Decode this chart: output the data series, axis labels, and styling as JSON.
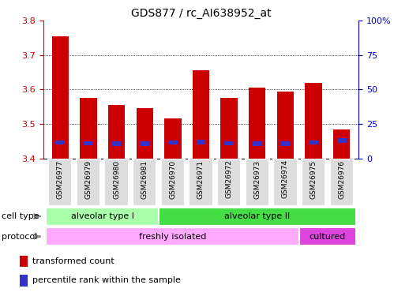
{
  "title": "GDS877 / rc_AI638952_at",
  "samples": [
    "GSM26977",
    "GSM26979",
    "GSM26980",
    "GSM26981",
    "GSM26970",
    "GSM26971",
    "GSM26972",
    "GSM26973",
    "GSM26974",
    "GSM26975",
    "GSM26976"
  ],
  "transformed_count": [
    3.755,
    3.575,
    3.555,
    3.545,
    3.515,
    3.655,
    3.575,
    3.605,
    3.595,
    3.62,
    3.485
  ],
  "percentile_rank_pct": [
    11.5,
    11.0,
    10.8,
    10.5,
    11.5,
    12.0,
    11.0,
    10.5,
    10.8,
    11.5,
    13.0
  ],
  "bar_bottom": 3.4,
  "ylim": [
    3.4,
    3.8
  ],
  "y2lim": [
    0,
    100
  ],
  "yticks": [
    3.4,
    3.5,
    3.6,
    3.7,
    3.8
  ],
  "y2ticks": [
    0,
    25,
    50,
    75,
    100
  ],
  "y2ticklabels": [
    "0",
    "25",
    "50",
    "75",
    "100%"
  ],
  "bar_color": "#CC0000",
  "blue_color": "#3333CC",
  "cell_type_groups": [
    {
      "label": "alveolar type I",
      "start": 0,
      "end": 4,
      "color": "#AAFFAA"
    },
    {
      "label": "alveolar type II",
      "start": 4,
      "end": 11,
      "color": "#44DD44"
    }
  ],
  "protocol_groups": [
    {
      "label": "freshly isolated",
      "start": 0,
      "end": 9,
      "color": "#FFAAFF"
    },
    {
      "label": "cultured",
      "start": 9,
      "end": 11,
      "color": "#DD44DD"
    }
  ],
  "legend_items": [
    {
      "label": "transformed count",
      "color": "#CC0000"
    },
    {
      "label": "percentile rank within the sample",
      "color": "#3333CC"
    }
  ],
  "tick_color_left": "#CC0000",
  "tick_color_right": "#0000CC",
  "label_fontsize": 8,
  "title_fontsize": 10
}
